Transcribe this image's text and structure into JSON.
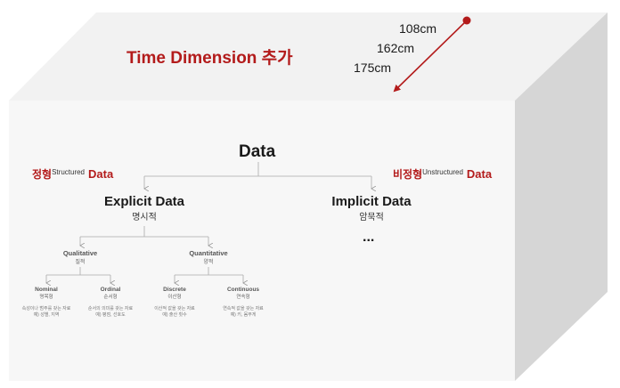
{
  "cube": {
    "title": "Time Dimension 추가",
    "dimensions": [
      "108cm",
      "162cm",
      "175cm"
    ],
    "colors": {
      "accent": "#b31b1b",
      "arrow": "#b31b1b",
      "front_face": "#f7f7f7",
      "top_face": "#f1f1f1",
      "side_face": "#d7d7d7"
    }
  },
  "tree": {
    "root": "Data",
    "left_tag": {
      "main": "정형",
      "sup": "Structured",
      "data_word": "Data"
    },
    "right_tag": {
      "main": "비정형",
      "sup": "Unstructured",
      "data_word": "Data"
    },
    "explicit": {
      "label": "Explicit Data",
      "sub": "명시적"
    },
    "implicit": {
      "label": "Implicit Data",
      "sub": "암묵적",
      "more": "..."
    },
    "qualitative": {
      "label": "Qualitative",
      "sub": "질적"
    },
    "quantitative": {
      "label": "Quantitative",
      "sub": "양적"
    },
    "nominal": {
      "label": "Nominal",
      "sub": "명목형",
      "desc1": "속성이나 범주를 갖는 자료",
      "desc2": "예) 성별, 지역"
    },
    "ordinal": {
      "label": "Ordinal",
      "sub": "순서형",
      "desc1": "순서의 의미를 갖는 자료",
      "desc2": "예) 평점, 선호도"
    },
    "discrete": {
      "label": "Discrete",
      "sub": "이산형",
      "desc1": "이산적 값을 갖는 자료",
      "desc2": "예) 출산 횟수"
    },
    "continuous": {
      "label": "Continuous",
      "sub": "연속형",
      "desc1": "연속적 값을 갖는 자료",
      "desc2": "예) 키, 몸무게"
    }
  }
}
